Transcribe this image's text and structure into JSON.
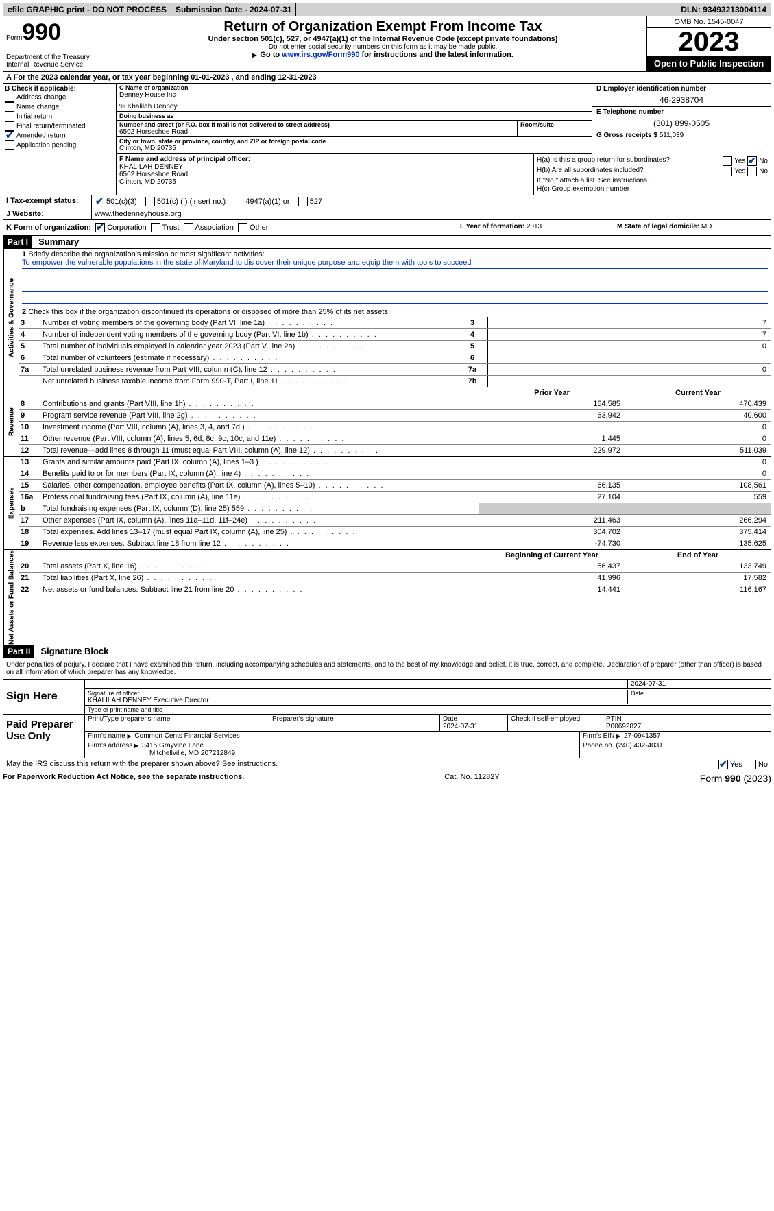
{
  "topbar": {
    "efile": "efile GRAPHIC print - DO NOT PROCESS",
    "submission": "Submission Date - 2024-07-31",
    "dln": "DLN: 93493213004114"
  },
  "header": {
    "form_prefix": "Form",
    "form_num": "990",
    "title": "Return of Organization Exempt From Income Tax",
    "sub1": "Under section 501(c), 527, or 4947(a)(1) of the Internal Revenue Code (except private foundations)",
    "sub2": "Do not enter social security numbers on this form as it may be made public.",
    "sub3_prefix": "Go to ",
    "sub3_link": "www.irs.gov/Form990",
    "sub3_suffix": " for instructions and the latest information.",
    "dept1": "Department of the Treasury",
    "dept2": "Internal Revenue Service",
    "omb": "OMB No. 1545-0047",
    "year": "2023",
    "open": "Open to Public Inspection"
  },
  "period": "A For the 2023 calendar year, or tax year beginning 01-01-2023   , and ending 12-31-2023",
  "secB": {
    "label": "B Check if applicable:",
    "addr": "Address change",
    "name": "Name change",
    "init": "Initial return",
    "final": "Final return/terminated",
    "amend": "Amended return",
    "app": "Application pending"
  },
  "secC": {
    "name_lbl": "C Name of organization",
    "name": "Denney House Inc",
    "care": "% Khalilah Denney",
    "dba_lbl": "Doing business as",
    "street_lbl": "Number and street (or P.O. box if mail is not delivered to street address)",
    "street": "6502 Horseshoe Road",
    "room_lbl": "Room/suite",
    "city_lbl": "City or town, state or province, country, and ZIP or foreign postal code",
    "city": "Clinton, MD  20735"
  },
  "secD": {
    "lbl": "D Employer identification number",
    "val": "46-2938704"
  },
  "secE": {
    "lbl": "E Telephone number",
    "val": "(301) 899-0505"
  },
  "secG": {
    "lbl": "G Gross receipts $",
    "val": "511,039"
  },
  "secF": {
    "lbl": "F  Name and address of principal officer:",
    "name": "KHALILAH DENNEY",
    "addr1": "6502 Horseshoe Road",
    "addr2": "Clinton, MD  20735"
  },
  "secH": {
    "a": "H(a)  Is this a group return for subordinates?",
    "b": "H(b)  Are all subordinates included?",
    "note": "If \"No,\" attach a list. See instructions.",
    "c": "H(c)  Group exemption number",
    "yes": "Yes",
    "no": "No"
  },
  "rowI": {
    "lab": "I  Tax-exempt status:",
    "c1": "501(c)(3)",
    "c2": "501(c) (  ) (insert no.)",
    "c3": "4947(a)(1) or",
    "c4": "527"
  },
  "rowJ": {
    "lab": "J  Website:",
    "val": "www.thedenneyhouse.org"
  },
  "rowK": {
    "lab": "K Form of organization:",
    "c1": "Corporation",
    "c2": "Trust",
    "c3": "Association",
    "c4": "Other",
    "l_lbl": "L Year of formation:",
    "l_val": "2013",
    "m_lbl": "M State of legal domicile:",
    "m_val": "MD"
  },
  "part1": {
    "part": "Part I",
    "title": "Summary",
    "q1": "Briefly describe the organization's mission or most significant activities:",
    "mission": "To empower the vulnerable populations in the state of Maryland to dis cover their unique purpose and equip them with tools to succeed",
    "q2": "Check this box        if the organization discontinued its operations or disposed of more than 25% of its net assets."
  },
  "vlabels": {
    "gov": "Activities & Governance",
    "rev": "Revenue",
    "exp": "Expenses",
    "net": "Net Assets or Fund Balances"
  },
  "gov_rows": [
    {
      "n": "3",
      "t": "Number of voting members of the governing body (Part VI, line 1a)",
      "c": "3",
      "v": "7"
    },
    {
      "n": "4",
      "t": "Number of independent voting members of the governing body (Part VI, line 1b)",
      "c": "4",
      "v": "7"
    },
    {
      "n": "5",
      "t": "Total number of individuals employed in calendar year 2023 (Part V, line 2a)",
      "c": "5",
      "v": "0"
    },
    {
      "n": "6",
      "t": "Total number of volunteers (estimate if necessary)",
      "c": "6",
      "v": ""
    },
    {
      "n": "7a",
      "t": "Total unrelated business revenue from Part VIII, column (C), line 12",
      "c": "7a",
      "v": "0"
    },
    {
      "n": "",
      "t": "Net unrelated business taxable income from Form 990-T, Part I, line 11",
      "c": "7b",
      "v": ""
    }
  ],
  "col_hdr": {
    "py": "Prior Year",
    "cy": "Current Year",
    "bcy": "Beginning of Current Year",
    "eoy": "End of Year"
  },
  "rev_rows": [
    {
      "n": "8",
      "t": "Contributions and grants (Part VIII, line 1h)",
      "py": "164,585",
      "cy": "470,439"
    },
    {
      "n": "9",
      "t": "Program service revenue (Part VIII, line 2g)",
      "py": "63,942",
      "cy": "40,600"
    },
    {
      "n": "10",
      "t": "Investment income (Part VIII, column (A), lines 3, 4, and 7d )",
      "py": "",
      "cy": "0"
    },
    {
      "n": "11",
      "t": "Other revenue (Part VIII, column (A), lines 5, 6d, 8c, 9c, 10c, and 11e)",
      "py": "1,445",
      "cy": "0"
    },
    {
      "n": "12",
      "t": "Total revenue—add lines 8 through 11 (must equal Part VIII, column (A), line 12)",
      "py": "229,972",
      "cy": "511,039"
    }
  ],
  "exp_rows": [
    {
      "n": "13",
      "t": "Grants and similar amounts paid (Part IX, column (A), lines 1–3 )",
      "py": "",
      "cy": "0"
    },
    {
      "n": "14",
      "t": "Benefits paid to or for members (Part IX, column (A), line 4)",
      "py": "",
      "cy": "0"
    },
    {
      "n": "15",
      "t": "Salaries, other compensation, employee benefits (Part IX, column (A), lines 5–10)",
      "py": "66,135",
      "cy": "108,561"
    },
    {
      "n": "16a",
      "t": "Professional fundraising fees (Part IX, column (A), line 11e)",
      "py": "27,104",
      "cy": "559"
    },
    {
      "n": "b",
      "t": "Total fundraising expenses (Part IX, column (D), line 25) 559",
      "py": "shade",
      "cy": "shade"
    },
    {
      "n": "17",
      "t": "Other expenses (Part IX, column (A), lines 11a–11d, 11f–24e)",
      "py": "211,463",
      "cy": "266,294"
    },
    {
      "n": "18",
      "t": "Total expenses. Add lines 13–17 (must equal Part IX, column (A), line 25)",
      "py": "304,702",
      "cy": "375,414"
    },
    {
      "n": "19",
      "t": "Revenue less expenses. Subtract line 18 from line 12",
      "py": "-74,730",
      "cy": "135,625"
    }
  ],
  "net_rows": [
    {
      "n": "20",
      "t": "Total assets (Part X, line 16)",
      "py": "56,437",
      "cy": "133,749"
    },
    {
      "n": "21",
      "t": "Total liabilities (Part X, line 26)",
      "py": "41,996",
      "cy": "17,582"
    },
    {
      "n": "22",
      "t": "Net assets or fund balances. Subtract line 21 from line 20",
      "py": "14,441",
      "cy": "116,167"
    }
  ],
  "part2": {
    "part": "Part II",
    "title": "Signature Block"
  },
  "sig": {
    "decl": "Under penalties of perjury, I declare that I have examined this return, including accompanying schedules and statements, and to the best of my knowledge and belief, it is true, correct, and complete. Declaration of preparer (other than officer) is based on all information of which preparer has any knowledge.",
    "sign_here": "Sign Here",
    "sig_off": "Signature of officer",
    "sig_name": "KHALILAH DENNEY  Executive Director",
    "sig_type": "Type or print name and title",
    "date_lbl": "Date",
    "date": "2024-07-31"
  },
  "prep": {
    "lab": "Paid Preparer Use Only",
    "h1": "Print/Type preparer's name",
    "h2": "Preparer's signature",
    "h3": "Date",
    "h3v": "2024-07-31",
    "h4": "Check        if self-employed",
    "h5": "PTIN",
    "h5v": "P00692827",
    "firm_lbl": "Firm's name",
    "firm": "Common Cents Financial Services",
    "ein_lbl": "Firm's EIN",
    "ein": "27-0941357",
    "addr_lbl": "Firm's address",
    "addr1": "3415 Grayvine Lane",
    "addr2": "Mitchellville, MD  207212849",
    "phone_lbl": "Phone no.",
    "phone": "(240) 432-4031"
  },
  "discuss": {
    "q": "May the IRS discuss this return with the preparer shown above? See instructions.",
    "yes": "Yes",
    "no": "No"
  },
  "footer": {
    "l": "For Paperwork Reduction Act Notice, see the separate instructions.",
    "c": "Cat. No. 11282Y",
    "r": "Form 990 (2023)"
  }
}
